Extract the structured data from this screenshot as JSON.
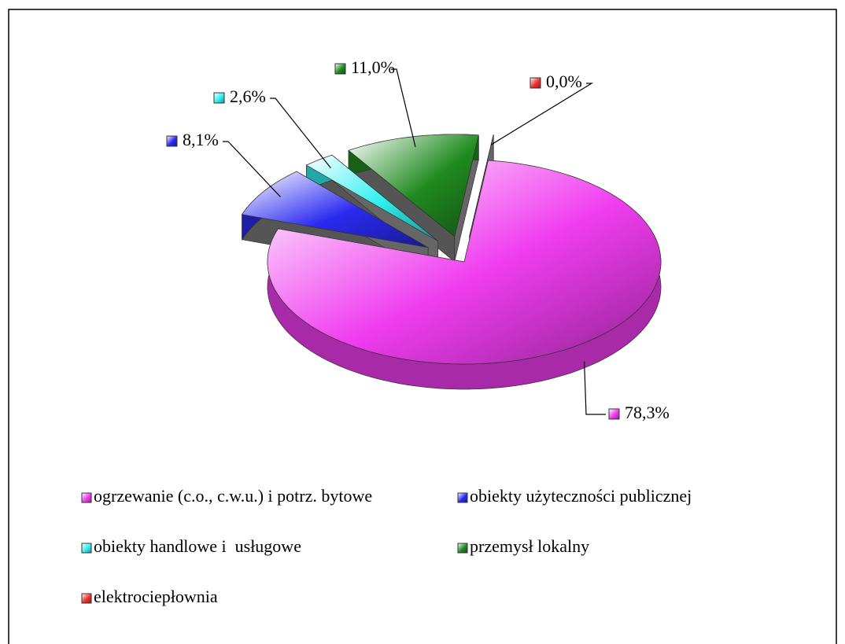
{
  "chart_data": {
    "type": "pie",
    "categories": [
      "ogrzewanie (c.o., c.w.u.) i potrz. bytowe",
      "obiekty użyteczności publicznej",
      "obiekty handlowe i  usługowe",
      "przemysł lokalny",
      "elektrociepłownia"
    ],
    "values": [
      78.3,
      8.1,
      2.6,
      11.0,
      0.0
    ],
    "value_labels": [
      "78,3%",
      "8,1%",
      "2,6%",
      "11,0%",
      "0,0%"
    ],
    "colors": [
      "#f03cf0",
      "#2a2af0",
      "#30f0f0",
      "#1f8a1f",
      "#f03030"
    ],
    "legend": "bottom"
  }
}
